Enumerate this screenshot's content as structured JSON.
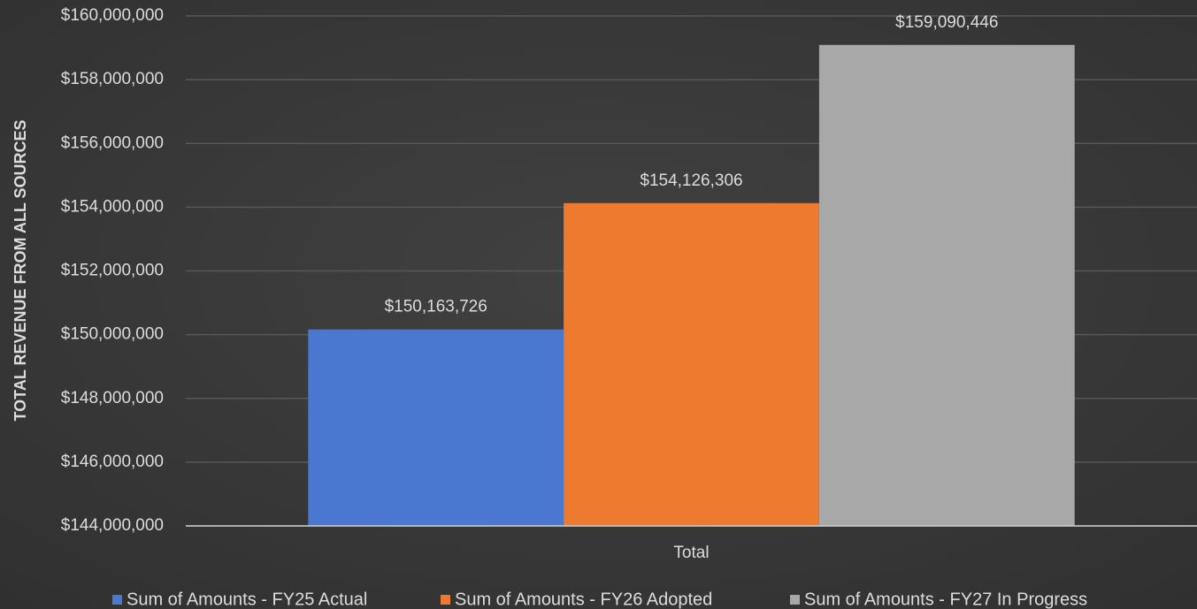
{
  "chart_data": {
    "type": "bar",
    "y_label": "TOTAL REVENUE FROM ALL SOURCES",
    "categories": [
      "Total"
    ],
    "series": [
      {
        "name": "Sum of Amounts - FY25 Actual",
        "color": "#4a78d0",
        "values": [
          150163726
        ],
        "value_labels": [
          "$150,163,726"
        ]
      },
      {
        "name": "Sum of Amounts - FY26 Adopted",
        "color": "#ee7a2f",
        "values": [
          154126306
        ],
        "value_labels": [
          "$154,126,306"
        ]
      },
      {
        "name": "Sum of Amounts - FY27 In Progress",
        "color": "#a8a8a8",
        "values": [
          159090446
        ],
        "value_labels": [
          "$159,090,446"
        ]
      }
    ],
    "ylim": [
      144000000,
      160000000
    ],
    "yticks": [
      {
        "value": 144000000,
        "label": "$144,000,000"
      },
      {
        "value": 146000000,
        "label": "$146,000,000"
      },
      {
        "value": 148000000,
        "label": "$148,000,000"
      },
      {
        "value": 150000000,
        "label": "$150,000,000"
      },
      {
        "value": 152000000,
        "label": "$152,000,000"
      },
      {
        "value": 154000000,
        "label": "$154,000,000"
      },
      {
        "value": 156000000,
        "label": "$156,000,000"
      },
      {
        "value": 158000000,
        "label": "$158,000,000"
      },
      {
        "value": 160000000,
        "label": "$160,000,000"
      }
    ],
    "grid": true,
    "legend": "bottom"
  }
}
